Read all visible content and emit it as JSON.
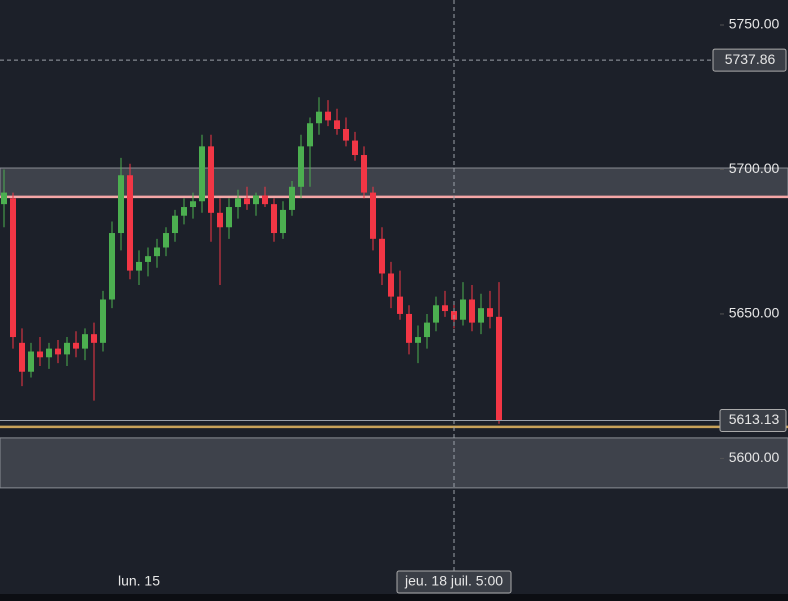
{
  "chart_data": {
    "type": "candlestick",
    "categories": [
      null,
      null,
      null,
      null,
      null,
      null,
      null,
      null,
      null,
      null,
      null,
      null,
      null,
      null,
      null,
      "lun. 15",
      null,
      null,
      null,
      null,
      null,
      null,
      null,
      null,
      null,
      null,
      null,
      null,
      null,
      null,
      null,
      null,
      null,
      null,
      null,
      null,
      null,
      null,
      null,
      null,
      null,
      null,
      null,
      null,
      null,
      null,
      null,
      null,
      null,
      null,
      "jeu. 18 juil. 5:00",
      null,
      null,
      null,
      null,
      null
    ],
    "open": [
      5688,
      5690,
      5640,
      5630,
      5637,
      5635,
      5638,
      5636,
      5640,
      5638,
      5643,
      5640,
      5655,
      5678,
      5698,
      5665,
      5668,
      5670,
      5673,
      5678,
      5684,
      5687,
      5689,
      5708,
      5685,
      5680,
      5687,
      5690,
      5688,
      5691,
      5688,
      5678,
      5686,
      5694,
      5708,
      5716,
      5720,
      5717,
      5714,
      5710,
      5705,
      5692,
      5676,
      5664,
      5656,
      5650,
      5640,
      5642,
      5647,
      5653,
      5651,
      5648,
      5655,
      5647,
      5652,
      5649
    ],
    "high": [
      5700,
      5692,
      5645,
      5640,
      5642,
      5640,
      5641,
      5642,
      5644,
      5645,
      5647,
      5658,
      5682,
      5704,
      5702,
      5672,
      5673,
      5676,
      5680,
      5686,
      5690,
      5692,
      5712,
      5712,
      5690,
      5690,
      5693,
      5694,
      5692,
      5694,
      5690,
      5689,
      5696,
      5712,
      5718,
      5725,
      5724,
      5721,
      5718,
      5713,
      5708,
      5694,
      5680,
      5668,
      5665,
      5653,
      5646,
      5650,
      5656,
      5658,
      5654,
      5661,
      5660,
      5657,
      5658,
      5661
    ],
    "low": [
      5680,
      5638,
      5625,
      5628,
      5632,
      5631,
      5633,
      5632,
      5635,
      5634,
      5620,
      5637,
      5652,
      5672,
      5662,
      5660,
      5663,
      5666,
      5670,
      5675,
      5681,
      5683,
      5685,
      5675,
      5660,
      5676,
      5683,
      5686,
      5684,
      5687,
      5675,
      5676,
      5684,
      5690,
      5694,
      5712,
      5715,
      5712,
      5708,
      5703,
      5690,
      5672,
      5660,
      5652,
      5648,
      5636,
      5633,
      5638,
      5644,
      5649,
      5645,
      5646,
      5644,
      5643,
      5645,
      5612
    ],
    "close": [
      5692,
      5642,
      5630,
      5637,
      5635,
      5638,
      5636,
      5640,
      5638,
      5643,
      5640,
      5655,
      5678,
      5698,
      5665,
      5668,
      5670,
      5673,
      5678,
      5684,
      5687,
      5689,
      5708,
      5685,
      5680,
      5687,
      5690,
      5688,
      5691,
      5688,
      5678,
      5686,
      5694,
      5708,
      5716,
      5720,
      5717,
      5714,
      5710,
      5705,
      5692,
      5676,
      5664,
      5656,
      5650,
      5640,
      5642,
      5647,
      5653,
      5651,
      5648,
      5655,
      5647,
      5652,
      5649,
      5613.13
    ],
    "up_color": "#4caf50",
    "down_color": "#f23645",
    "ylim": [
      5551,
      5758.65
    ],
    "yticks": [
      {
        "value": 5600,
        "label": "5600.00"
      },
      {
        "value": 5650,
        "label": "5650.00"
      },
      {
        "value": 5700,
        "label": "5700.00"
      },
      {
        "value": 5750,
        "label": "5750.00"
      }
    ],
    "zones": [
      {
        "low": 5690.5,
        "high": 5700.5,
        "color": "#4a4e57"
      },
      {
        "low": 5589.8,
        "high": 5607.1,
        "color": "#4a4e57"
      }
    ],
    "lines": [
      {
        "value": 5690.5,
        "color": "#f4a6a6"
      },
      {
        "value": 5610.9,
        "color": "#c9a35a"
      }
    ],
    "crosshair": {
      "y": 5737.86,
      "x_index": 50
    }
  }
}
